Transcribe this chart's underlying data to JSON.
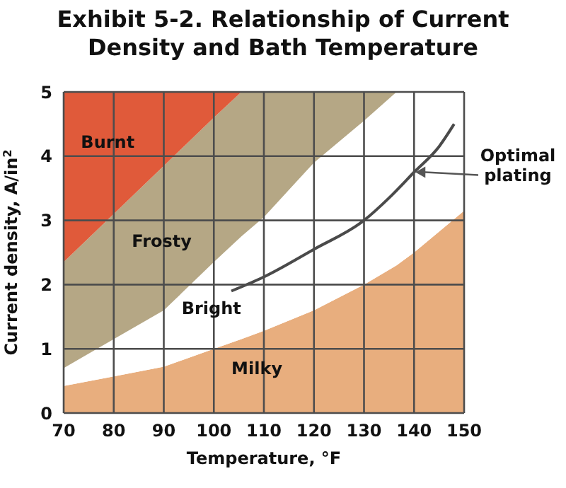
{
  "chart_data": {
    "type": "area",
    "title": "Exhibit 5-2. Relationship of Current Density and Bath Temperature",
    "xlabel": "Temperature, °F",
    "ylabel": "Current density, A/in$^{2}$",
    "stacked": true,
    "x": [
      70,
      80,
      90,
      100,
      105.5,
      110,
      120,
      130,
      136.5,
      140,
      150
    ],
    "series": [
      {
        "name": "Milky",
        "color": "#e8ae7e",
        "values": [
          0.42,
          0.57,
          0.72,
          1.0,
          1.15,
          1.28,
          1.6,
          2.0,
          2.3,
          2.5,
          3.15
        ]
      },
      {
        "name": "Bright",
        "color": "#ffffff",
        "values": [
          0.28,
          0.58,
          0.88,
          1.35,
          1.6,
          1.77,
          2.3,
          2.55,
          2.7,
          2.5,
          1.85
        ]
      },
      {
        "name": "Frosty",
        "color": "#b5a785",
        "values": [
          1.65,
          1.95,
          2.25,
          2.25,
          2.25,
          1.95,
          1.1,
          0.45,
          0,
          0,
          0
        ]
      },
      {
        "name": "Burnt",
        "color": "#e05a3a",
        "values": [
          2.65,
          1.9,
          1.15,
          0.4,
          0,
          0,
          0,
          0,
          0,
          0,
          0
        ]
      },
      {
        "name": "Optimal plating",
        "type": "line",
        "color": "#4a4a4a",
        "x": [
          103.5,
          110,
          120,
          130,
          135,
          140,
          145,
          148
        ],
        "values": [
          1.9,
          2.12,
          2.55,
          3.0,
          3.35,
          3.75,
          4.15,
          4.5
        ]
      }
    ],
    "xlim": [
      70,
      150
    ],
    "xticks": [
      70,
      80,
      90,
      100,
      110,
      120,
      130,
      140,
      150
    ],
    "ylim": [
      0,
      5
    ],
    "yticks": [
      0,
      1,
      2,
      3,
      4,
      5
    ],
    "grid": true,
    "legend": "right",
    "marker": "none",
    "line_style": "solid"
  }
}
